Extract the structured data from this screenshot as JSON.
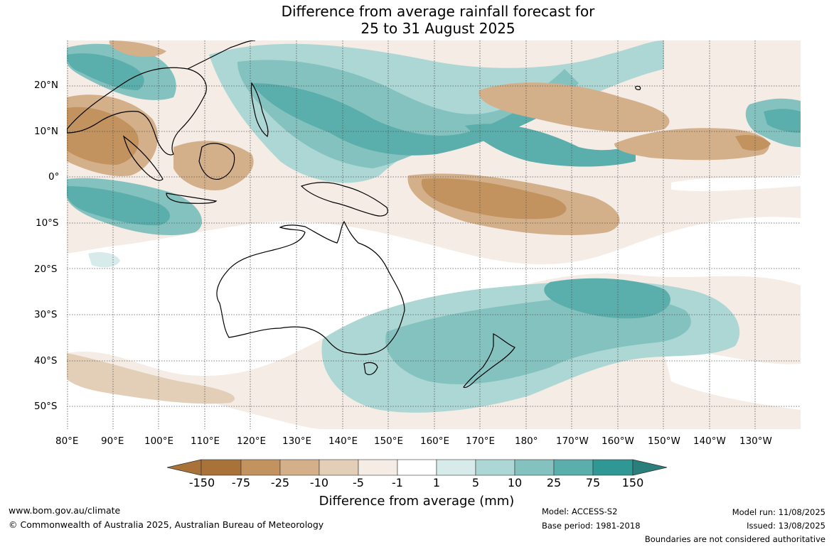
{
  "title": {
    "line1": "Difference from average rainfall forecast for",
    "line2": "25 to 31 August 2025"
  },
  "map": {
    "lat_labels": [
      "20°N",
      "10°N",
      "0°",
      "10°S",
      "20°S",
      "30°S",
      "40°S",
      "50°S"
    ],
    "lon_labels": [
      "80°E",
      "90°E",
      "100°E",
      "110°E",
      "120°E",
      "130°E",
      "140°E",
      "150°E",
      "160°E",
      "170°E",
      "180°",
      "170°W",
      "160°W",
      "150°W",
      "140°W",
      "130°W"
    ],
    "colors": {
      "dry_strong": "#a87239",
      "dry_2": "#c2925f",
      "dry_3": "#d4b08a",
      "dry_4": "#e3cfb8",
      "dry_5": "#f4ece5",
      "neutral": "#ffffff",
      "wet_5": "#d6ebea",
      "wet_4": "#acd7d5",
      "wet_3": "#84c2bf",
      "wet_2": "#5aaeab",
      "wet_strong": "#2f9794"
    }
  },
  "colorbar": {
    "ticks": [
      "-150",
      "-75",
      "-25",
      "-10",
      "-5",
      "-1",
      "1",
      "5",
      "10",
      "25",
      "75",
      "150"
    ],
    "title": "Difference from average (mm)"
  },
  "footer": {
    "website": "www.bom.gov.au/climate",
    "copyright": "© Commonwealth of Australia 2025, Australian Bureau of Meteorology",
    "model": "Model: ACCESS-S2",
    "base_period": "Base period: 1981-2018",
    "model_run": "Model run: 11/08/2025",
    "issued": "Issued: 13/08/2025",
    "disclaimer": "Boundaries are not considered authoritative"
  }
}
